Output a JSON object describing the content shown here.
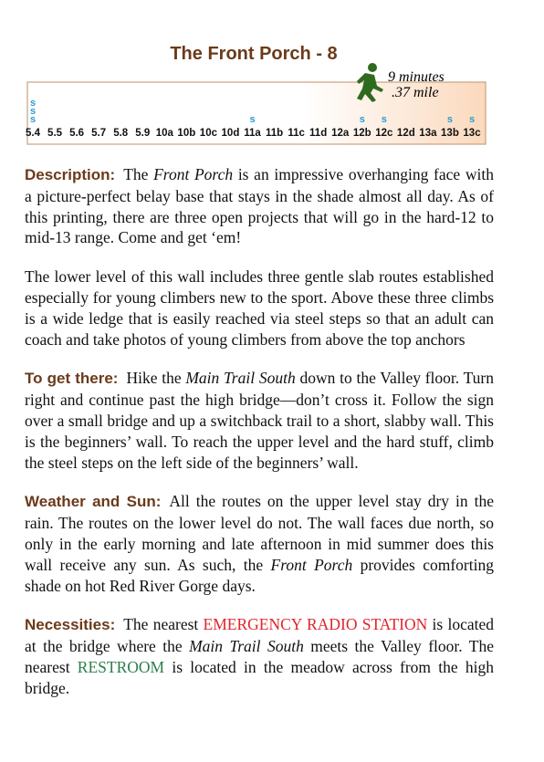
{
  "header": {
    "title": "The Front Porch - 8",
    "time": "9 minutes",
    "distance": ".37 mile"
  },
  "route_chart": {
    "symbol": "s",
    "grades": [
      "5.4",
      "5.5",
      "5.6",
      "5.7",
      "5.8",
      "5.9",
      "10a",
      "10b",
      "10c",
      "10d",
      "11a",
      "11b",
      "11c",
      "11d",
      "12a",
      "12b",
      "12c",
      "12d",
      "13a",
      "13b",
      "13c"
    ],
    "counts": [
      3,
      0,
      0,
      0,
      0,
      0,
      0,
      0,
      0,
      0,
      1,
      0,
      0,
      0,
      0,
      1,
      1,
      0,
      0,
      1,
      1
    ]
  },
  "paragraphs": [
    {
      "heading": "Description:",
      "segments": [
        {
          "text": "The "
        },
        {
          "text": "Front Porch",
          "style": "italic"
        },
        {
          "text": " is an impressive overhanging face with a picture-perfect belay base that stays in the shade almost all day. As of this printing, there are three open projects that will go in the hard-12 to mid-13 range. Come and get ‘em!"
        }
      ]
    },
    {
      "segments": [
        {
          "text": "The lower level of this wall includes three gentle slab routes established especially for young climbers new to the sport. Above these three climbs is a wide ledge that is easily reached via steel steps so that an adult can coach and take photos of young climbers from above the top anchors"
        }
      ]
    },
    {
      "heading": "To get there:",
      "segments": [
        {
          "text": "Hike the "
        },
        {
          "text": "Main Trail South",
          "style": "italic"
        },
        {
          "text": " down to the Valley floor. Turn right and continue past the high bridge—don’t cross it. Follow the sign over a small bridge and up a switchback trail to a short, slabby wall. This is the beginners’ wall. To reach the upper level and the hard stuff, climb the steel steps on the left side of the beginners’ wall."
        }
      ]
    },
    {
      "heading": "Weather and Sun:",
      "segments": [
        {
          "text": "All the routes on the upper level stay dry in the rain. The routes on the lower level do not. The wall faces due north, so only in the early morning and late afternoon in mid summer does this wall receive any sun. As such, the "
        },
        {
          "text": "Front Porch",
          "style": "italic"
        },
        {
          "text": " provides comforting shade on hot Red River Gorge days."
        }
      ]
    },
    {
      "heading": "Necessities:",
      "segments": [
        {
          "text": "The nearest "
        },
        {
          "text": "EMERGENCY RADIO STATION",
          "style": "red"
        },
        {
          "text": " is located at the bridge where the "
        },
        {
          "text": "Main Trail South",
          "style": "italic"
        },
        {
          "text": " meets the Valley floor. The nearest "
        },
        {
          "text": "RESTROOM",
          "style": "green"
        },
        {
          "text": " is located in the meadow across from the high bridge."
        }
      ]
    }
  ]
}
